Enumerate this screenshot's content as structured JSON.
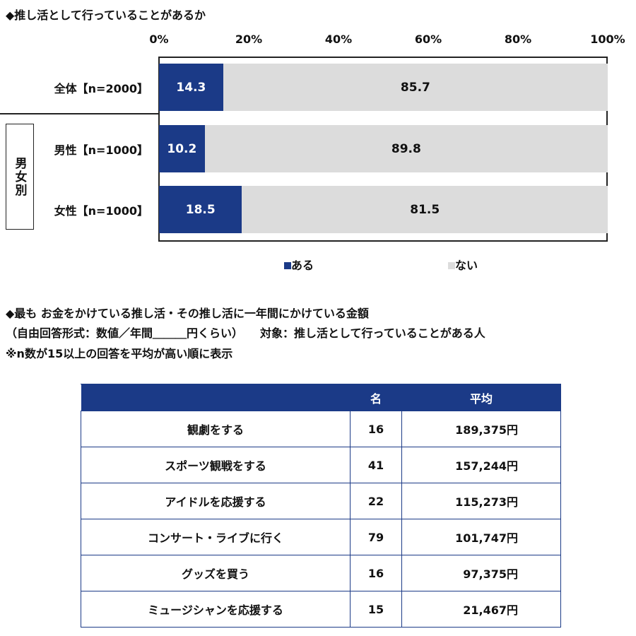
{
  "chart_data": {
    "type": "bar",
    "stacked": true,
    "orientation": "horizontal",
    "title": "◆推し活として行っていることがあるか",
    "categories": [
      "全体【n=2000】",
      "男性【n=1000】",
      "女性【n=1000】"
    ],
    "group_label": "男女別",
    "series": [
      {
        "name": "ある",
        "values": [
          14.3,
          10.2,
          18.5
        ],
        "color": "#1b3a87"
      },
      {
        "name": "ない",
        "values": [
          85.7,
          89.8,
          81.5
        ],
        "color": "#dcdcdc"
      }
    ],
    "xlim": [
      0,
      100
    ],
    "xticks": [
      "0%",
      "20%",
      "40%",
      "60%",
      "80%",
      "100%"
    ],
    "legend": "bottom"
  },
  "table": {
    "title": "◆最も お金をかけている推し活・その推し活に一年間にかけている金額",
    "subtitle": "（自由回答形式：数値／年間＿＿＿円くらい）　　対象：推し活として行っていることがある人",
    "note": "※n数が15以上の回答を平均が高い順に表示",
    "headers": [
      "",
      "名",
      "平均"
    ],
    "rows": [
      [
        "観劇をする",
        "16",
        "189,375円"
      ],
      [
        "スポーツ観戦をする",
        "41",
        "157,244円"
      ],
      [
        "アイドルを応援する",
        "22",
        "115,273円"
      ],
      [
        "コンサート・ライブに行く",
        "79",
        "101,747円"
      ],
      [
        "グッズを買う",
        "16",
        "97,375円"
      ],
      [
        "ミュージシャンを応援する",
        "15",
        "21,467円"
      ]
    ]
  }
}
